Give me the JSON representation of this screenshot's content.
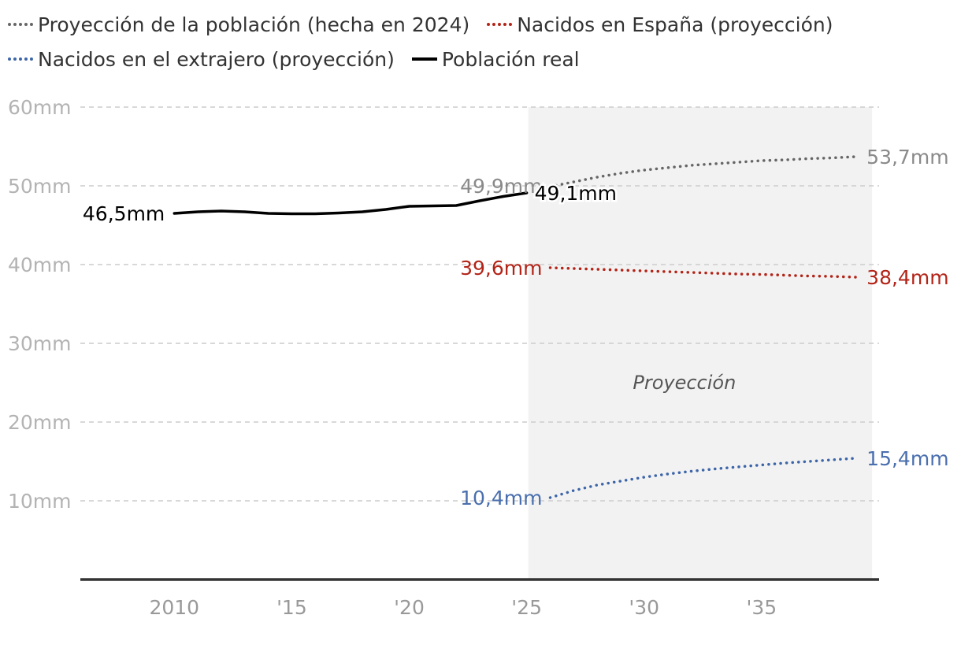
{
  "chart_data": {
    "type": "line",
    "title": "",
    "xlabel": "",
    "ylabel": "",
    "xlim": [
      2006,
      2040
    ],
    "ylim": [
      0,
      60
    ],
    "grid": true,
    "legend_position": "top",
    "y_ticks": [
      {
        "value": 60,
        "label": "60mm"
      },
      {
        "value": 50,
        "label": "50mm"
      },
      {
        "value": 40,
        "label": "40mm"
      },
      {
        "value": 30,
        "label": "30mm"
      },
      {
        "value": 20,
        "label": "20mm"
      },
      {
        "value": 10,
        "label": "10mm"
      }
    ],
    "x_ticks": [
      {
        "value": 2010,
        "label": "2010"
      },
      {
        "value": 2015,
        "label": "'15"
      },
      {
        "value": 2020,
        "label": "'20"
      },
      {
        "value": 2025,
        "label": "'25"
      },
      {
        "value": 2030,
        "label": "'30"
      },
      {
        "value": 2035,
        "label": "'35"
      }
    ],
    "shaded_region": {
      "start": 2025,
      "end": 2039.7,
      "label": "Proyección"
    },
    "series": [
      {
        "name": "Proyección de la población (hecha en 2024)",
        "key": "proj",
        "style": "dotted",
        "color": "#666666",
        "x": [
          2026,
          2027,
          2028,
          2029,
          2030,
          2031,
          2032,
          2033,
          2034,
          2035,
          2036,
          2037,
          2038,
          2039
        ],
        "values": [
          49.9,
          50.5,
          51.1,
          51.6,
          52.0,
          52.3,
          52.6,
          52.8,
          53.0,
          53.2,
          53.3,
          53.45,
          53.55,
          53.7
        ],
        "labels": [
          {
            "text": "49,9mm",
            "position": "start"
          },
          {
            "text": "53,7mm",
            "position": "end"
          }
        ]
      },
      {
        "name": "Nacidos en España (proyección)",
        "key": "spain",
        "style": "dotted",
        "color": "#b32418",
        "x": [
          2026,
          2027,
          2028,
          2029,
          2030,
          2031,
          2032,
          2033,
          2034,
          2035,
          2036,
          2037,
          2038,
          2039
        ],
        "values": [
          39.6,
          39.5,
          39.4,
          39.3,
          39.2,
          39.1,
          39.0,
          38.9,
          38.8,
          38.75,
          38.65,
          38.55,
          38.5,
          38.4
        ],
        "labels": [
          {
            "text": "39,6mm",
            "position": "start"
          },
          {
            "text": "38,4mm",
            "position": "end"
          }
        ]
      },
      {
        "name": "Nacidos en el extrajero (proyección)",
        "key": "foreign",
        "style": "dotted",
        "color": "#3c65a8",
        "x": [
          2026,
          2027,
          2028,
          2029,
          2030,
          2031,
          2032,
          2033,
          2034,
          2035,
          2036,
          2037,
          2038,
          2039
        ],
        "values": [
          10.4,
          11.3,
          12.0,
          12.5,
          13.0,
          13.4,
          13.75,
          14.05,
          14.3,
          14.55,
          14.8,
          15.0,
          15.2,
          15.4
        ],
        "labels": [
          {
            "text": "10,4mm",
            "position": "start"
          },
          {
            "text": "15,4mm",
            "position": "end"
          }
        ]
      },
      {
        "name": "Población real",
        "key": "real",
        "style": "solid",
        "color": "#000000",
        "x": [
          2010,
          2011,
          2012,
          2013,
          2014,
          2015,
          2016,
          2017,
          2018,
          2019,
          2020,
          2021,
          2022,
          2023,
          2024,
          2025
        ],
        "values": [
          46.5,
          46.7,
          46.8,
          46.7,
          46.5,
          46.45,
          46.45,
          46.55,
          46.7,
          47.0,
          47.4,
          47.45,
          47.5,
          48.1,
          48.65,
          49.1
        ],
        "labels": [
          {
            "text": "46,5mm",
            "position": "start"
          },
          {
            "text": "49,1mm",
            "position": "end"
          }
        ]
      }
    ]
  }
}
